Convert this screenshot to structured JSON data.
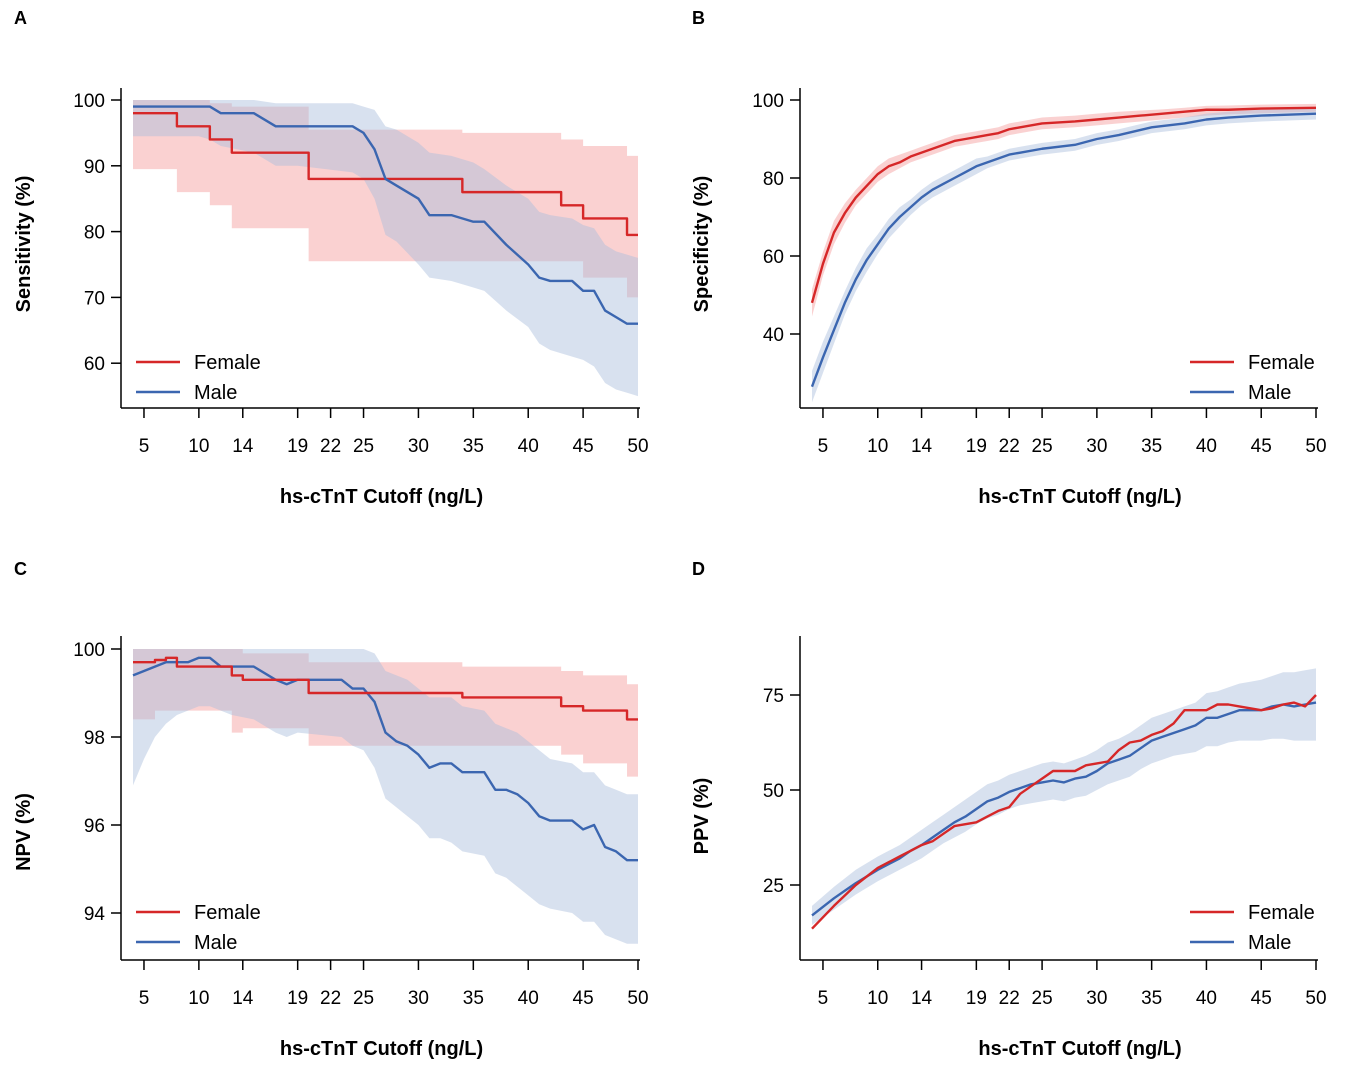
{
  "colors": {
    "female": "#d62728",
    "male": "#3b66b0",
    "female_band": "#f5a3a3",
    "male_band": "#a9bcdc"
  },
  "chart_data": [
    {
      "panel": "A",
      "type": "line",
      "xlabel": "hs-cTnT Cutoff (ng/L)",
      "ylabel": "Sensitivity (%)",
      "xlim": [
        4,
        50
      ],
      "ylim": [
        55,
        102
      ],
      "xticks": [
        5,
        10,
        14,
        19,
        22,
        25,
        30,
        35,
        40,
        45,
        50
      ],
      "yticks": [
        60,
        70,
        80,
        90,
        100
      ],
      "legend": "bottom-left",
      "series": [
        {
          "name": "Female",
          "color": "#d62728",
          "step": true,
          "x": [
            4,
            8,
            11,
            13,
            20,
            34,
            43,
            45,
            49,
            50
          ],
          "y": [
            98,
            96,
            94,
            92,
            88,
            86,
            84,
            82,
            79.5,
            79.5
          ],
          "lo": [
            89.5,
            86,
            84,
            80.5,
            75.5,
            75.5,
            75.5,
            73,
            70,
            70
          ],
          "hi": [
            100,
            100,
            99.5,
            99,
            95.5,
            95,
            94,
            93,
            91.5,
            90
          ]
        },
        {
          "name": "Male",
          "color": "#3b66b0",
          "step": false,
          "x": [
            4,
            10,
            11,
            12,
            15,
            17,
            19,
            24,
            25,
            26,
            27,
            28,
            30,
            31,
            33,
            35,
            36,
            38,
            40,
            41,
            42,
            44,
            45,
            46,
            47,
            48,
            49,
            50
          ],
          "y": [
            99,
            99,
            99,
            98,
            98,
            96,
            96,
            96,
            95,
            92.5,
            88,
            87,
            85,
            82.5,
            82.5,
            81.5,
            81.5,
            78,
            75,
            73,
            72.5,
            72.5,
            71,
            71,
            68,
            67,
            66,
            66
          ],
          "lo": [
            94.5,
            94.5,
            94,
            93,
            92,
            90,
            90,
            89,
            88,
            85,
            79.5,
            78.5,
            75,
            73,
            72.5,
            71.5,
            71,
            68,
            65.5,
            63,
            62,
            61,
            60.5,
            59.5,
            57,
            56,
            55.5,
            55
          ],
          "hi": [
            100,
            100,
            100,
            100,
            100,
            99.5,
            99.5,
            99.5,
            99,
            98.5,
            96,
            95.5,
            93.5,
            92,
            91.5,
            90.5,
            89.5,
            87,
            85,
            83,
            82.5,
            82,
            81,
            80.5,
            78,
            77,
            76.5,
            76
          ]
        }
      ]
    },
    {
      "panel": "B",
      "type": "line",
      "xlabel": "hs-cTnT Cutoff (ng/L)",
      "ylabel": "Specificity (%)",
      "xlim": [
        4,
        50
      ],
      "ylim": [
        23,
        101
      ],
      "xticks": [
        5,
        10,
        14,
        19,
        22,
        25,
        30,
        35,
        40,
        45,
        50
      ],
      "yticks": [
        40,
        60,
        80,
        100
      ],
      "legend": "bottom-right",
      "series": [
        {
          "name": "Female",
          "color": "#d62728",
          "step": false,
          "x": [
            4,
            5,
            6,
            7,
            8,
            9,
            10,
            11,
            12,
            13,
            14,
            15,
            16,
            17,
            18,
            19,
            20,
            21,
            22,
            23,
            25,
            28,
            30,
            32,
            34,
            36,
            38,
            40,
            42,
            45,
            50
          ],
          "y": [
            48,
            58,
            66,
            71,
            75,
            78,
            81,
            83,
            84,
            85.5,
            86.5,
            87.5,
            88.5,
            89.5,
            90,
            90.5,
            91,
            91.5,
            92.5,
            93,
            94,
            94.5,
            95,
            95.5,
            96,
            96.5,
            97,
            97.5,
            97.5,
            97.8,
            98
          ],
          "lo": [
            44.5,
            55,
            63,
            68.5,
            73,
            76,
            79,
            81,
            82.5,
            84,
            85,
            86,
            87,
            88,
            88.5,
            89,
            89.5,
            90,
            91,
            91.5,
            92.5,
            93,
            93.5,
            94,
            94.5,
            95,
            95.5,
            96,
            96.3,
            96.6,
            97
          ],
          "hi": [
            51.5,
            61,
            69,
            73.5,
            77,
            80,
            83,
            85,
            86,
            87,
            88,
            89,
            90,
            91,
            91.5,
            92,
            92.5,
            93,
            94,
            94.5,
            95.5,
            96,
            96.5,
            97,
            97.3,
            97.6,
            98,
            98.5,
            98.6,
            98.8,
            99
          ]
        },
        {
          "name": "Male",
          "color": "#3b66b0",
          "step": false,
          "x": [
            4,
            5,
            6,
            7,
            8,
            9,
            10,
            11,
            12,
            13,
            14,
            15,
            16,
            17,
            18,
            19,
            20,
            21,
            22,
            23,
            25,
            28,
            30,
            32,
            35,
            38,
            40,
            42,
            45,
            50
          ],
          "y": [
            26.5,
            34,
            41,
            48,
            54,
            59,
            63,
            67,
            70,
            72.5,
            75,
            77,
            78.5,
            80,
            81.5,
            83,
            84,
            85,
            86,
            86.5,
            87.5,
            88.5,
            90,
            91,
            93,
            94,
            95,
            95.5,
            96,
            96.5
          ],
          "lo": [
            22.5,
            30,
            37.5,
            45,
            51,
            56,
            60.5,
            64.5,
            67.5,
            70.5,
            73,
            75,
            76.5,
            78,
            79.5,
            81,
            82.5,
            83.5,
            84.5,
            85,
            86,
            87,
            88.5,
            89.5,
            91.5,
            92.5,
            93.5,
            94,
            94.5,
            95
          ],
          "hi": [
            30.5,
            38,
            44.5,
            51,
            57,
            62,
            65.5,
            69.5,
            72.5,
            74.5,
            77,
            79,
            80.5,
            82,
            83.5,
            85,
            85.5,
            86.5,
            87.5,
            88,
            89,
            90,
            91.5,
            92.5,
            94.5,
            95.5,
            96.5,
            97,
            97.5,
            98
          ]
        }
      ]
    },
    {
      "panel": "C",
      "type": "line",
      "xlabel": "hs-cTnT Cutoff (ng/L)",
      "ylabel": "NPV (%)",
      "xlim": [
        4,
        50
      ],
      "ylim": [
        92.9,
        100.2
      ],
      "xticks": [
        5,
        10,
        14,
        19,
        22,
        25,
        30,
        35,
        40,
        45,
        50
      ],
      "yticks": [
        94,
        96,
        98,
        100
      ],
      "legend": "bottom-left",
      "series": [
        {
          "name": "Female",
          "color": "#d62728",
          "step": true,
          "x": [
            4,
            6,
            7,
            8,
            11,
            13,
            14,
            20,
            34,
            43,
            45,
            49,
            50
          ],
          "y": [
            99.7,
            99.75,
            99.8,
            99.6,
            99.6,
            99.4,
            99.3,
            99,
            98.9,
            98.7,
            98.6,
            98.4,
            98.4
          ],
          "lo": [
            98.4,
            98.6,
            98.6,
            98.6,
            98.6,
            98.1,
            98.2,
            97.8,
            97.8,
            97.6,
            97.4,
            97.1,
            97.1
          ],
          "hi": [
            100,
            100,
            100,
            100,
            100,
            100,
            99.9,
            99.7,
            99.6,
            99.5,
            99.4,
            99.2,
            99.2
          ]
        },
        {
          "name": "Male",
          "color": "#3b66b0",
          "step": false,
          "x": [
            4,
            5,
            6,
            7,
            8,
            9,
            10,
            11,
            12,
            13,
            15,
            17,
            18,
            19,
            23,
            24,
            25,
            26,
            27,
            28,
            29,
            30,
            31,
            32,
            33,
            34,
            36,
            37,
            38,
            39,
            40,
            41,
            42,
            44,
            45,
            46,
            47,
            48,
            49,
            50
          ],
          "y": [
            99.4,
            99.5,
            99.6,
            99.7,
            99.7,
            99.7,
            99.8,
            99.8,
            99.6,
            99.6,
            99.6,
            99.3,
            99.2,
            99.3,
            99.3,
            99.1,
            99.1,
            98.8,
            98.1,
            97.9,
            97.8,
            97.6,
            97.3,
            97.4,
            97.4,
            97.2,
            97.2,
            96.8,
            96.8,
            96.7,
            96.5,
            96.2,
            96.1,
            96.1,
            95.9,
            96.0,
            95.5,
            95.4,
            95.2,
            95.2
          ],
          "lo": [
            96.9,
            97.5,
            98.0,
            98.3,
            98.5,
            98.6,
            98.7,
            98.7,
            98.6,
            98.5,
            98.4,
            98.1,
            98.0,
            98.1,
            98.0,
            97.8,
            97.7,
            97.3,
            96.6,
            96.4,
            96.2,
            96.0,
            95.7,
            95.7,
            95.6,
            95.4,
            95.3,
            94.9,
            94.8,
            94.6,
            94.4,
            94.2,
            94.1,
            94.0,
            93.8,
            93.8,
            93.5,
            93.4,
            93.3,
            93.3
          ],
          "hi": [
            100,
            100,
            100,
            100,
            100,
            100,
            100,
            100,
            100,
            100,
            100,
            100,
            100,
            100,
            100,
            100,
            100,
            99.9,
            99.5,
            99.4,
            99.3,
            99.1,
            98.9,
            98.9,
            98.9,
            98.7,
            98.6,
            98.3,
            98.2,
            98.1,
            97.9,
            97.7,
            97.5,
            97.4,
            97.2,
            97.2,
            96.9,
            96.8,
            96.7,
            96.7
          ]
        }
      ]
    },
    {
      "panel": "D",
      "type": "line",
      "xlabel": "hs-cTnT Cutoff (ng/L)",
      "ylabel": "PPV (%)",
      "xlim": [
        4,
        50
      ],
      "ylim": [
        7,
        88
      ],
      "xticks": [
        5,
        10,
        14,
        19,
        22,
        25,
        30,
        35,
        40,
        45,
        50
      ],
      "yticks": [
        25,
        50,
        75
      ],
      "legend": "bottom-right",
      "series": [
        {
          "name": "Female",
          "color": "#d62728",
          "step": false,
          "x": [
            4,
            6,
            8,
            10,
            11,
            12,
            13,
            14,
            15,
            16,
            17,
            18,
            19,
            20,
            21,
            22,
            23,
            24,
            25,
            26,
            27,
            28,
            29,
            30,
            31,
            32,
            33,
            34,
            35,
            36,
            37,
            38,
            40,
            41,
            42,
            43,
            44,
            45,
            46,
            47,
            48,
            49,
            50
          ],
          "y": [
            13.5,
            19.5,
            25,
            29.5,
            31,
            32.5,
            34,
            35.5,
            36.5,
            38.5,
            40.5,
            41,
            41.5,
            43,
            44.5,
            45.5,
            49,
            51,
            53,
            55,
            55,
            55,
            56.5,
            57,
            57.5,
            60.5,
            62.5,
            63,
            64.5,
            65.5,
            67.5,
            71,
            71,
            72.5,
            72.5,
            72,
            71.5,
            71,
            71.5,
            72.5,
            73,
            72,
            75
          ]
        },
        {
          "name": "Male",
          "color": "#3b66b0",
          "step": false,
          "x": [
            4,
            6,
            8,
            10,
            11,
            12,
            13,
            14,
            15,
            16,
            17,
            18,
            19,
            20,
            21,
            22,
            23,
            24,
            25,
            26,
            27,
            28,
            29,
            30,
            31,
            32,
            33,
            34,
            35,
            36,
            37,
            38,
            39,
            40,
            41,
            42,
            43,
            44,
            45,
            46,
            47,
            48,
            49,
            50
          ],
          "y": [
            17,
            21.5,
            25.5,
            29,
            30.5,
            32,
            34,
            35.5,
            37.5,
            39.5,
            41.5,
            43,
            45,
            47,
            48,
            49.5,
            50.5,
            51.5,
            52,
            52.5,
            52,
            53,
            53.5,
            55,
            57,
            58,
            59,
            61,
            63,
            64,
            65,
            66,
            67,
            69,
            69,
            70,
            71,
            71,
            71,
            72,
            72.5,
            72,
            72.5,
            73
          ],
          "lo": [
            14.5,
            18.5,
            22.5,
            26,
            27.5,
            29,
            30.5,
            32,
            34,
            36,
            37.5,
            39,
            41,
            42.5,
            43.5,
            45,
            46,
            46.5,
            47,
            47.5,
            47,
            48,
            48.5,
            50,
            51.5,
            52.5,
            53.5,
            55.5,
            57,
            58,
            59,
            59.5,
            60,
            61.5,
            61.5,
            62.5,
            63,
            63,
            63,
            63.5,
            63.5,
            63,
            63,
            63
          ],
          "hi": [
            19.5,
            24.5,
            29,
            32.5,
            34,
            35.5,
            37.5,
            39.5,
            41.5,
            43.5,
            45.5,
            47.5,
            49.5,
            51.5,
            52.5,
            54,
            55,
            56,
            57,
            57.5,
            57,
            58,
            59,
            60.5,
            62.5,
            63.5,
            65,
            67,
            69,
            70,
            71,
            72,
            73,
            75.5,
            76,
            77,
            78,
            78.5,
            79,
            80,
            81,
            81,
            81.5,
            82
          ]
        }
      ]
    }
  ]
}
